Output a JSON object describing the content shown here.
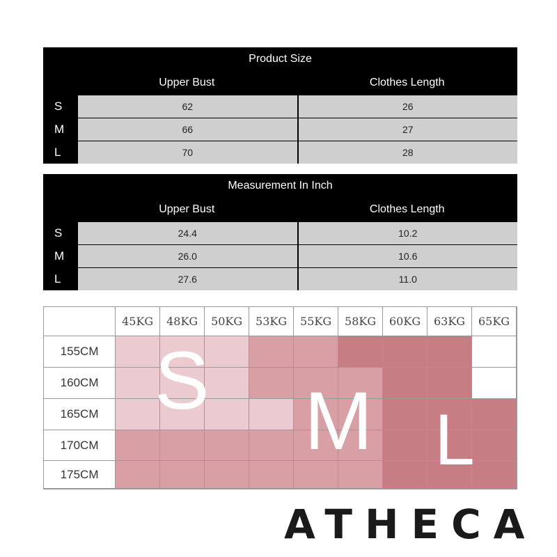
{
  "table_cm": {
    "title": "Product Size",
    "headers": [
      "Upper Bust",
      "Clothes Length"
    ],
    "rows": [
      {
        "size": "S",
        "values": [
          "62",
          "26"
        ]
      },
      {
        "size": "M",
        "values": [
          "66",
          "27"
        ]
      },
      {
        "size": "L",
        "values": [
          "70",
          "28"
        ]
      }
    ]
  },
  "table_inch": {
    "title": "Measurement In Inch",
    "headers": [
      "Upper Bust",
      "Clothes Length"
    ],
    "rows": [
      {
        "size": "S",
        "values": [
          "24.4",
          "10.2"
        ]
      },
      {
        "size": "M",
        "values": [
          "26.0",
          "10.6"
        ]
      },
      {
        "size": "L",
        "values": [
          "27.6",
          "11.0"
        ]
      }
    ]
  },
  "fit_grid": {
    "weights": [
      "45KG",
      "48KG",
      "50KG",
      "53KG",
      "55KG",
      "58KG",
      "60KG",
      "63KG",
      "65KG"
    ],
    "heights": [
      "155CM",
      "160CM",
      "165CM",
      "170CM",
      "175CM"
    ],
    "zone_letters": {
      "s": "S",
      "m": "M",
      "l": "L"
    },
    "colors": {
      "s": "#eccbd0",
      "m": "#d8a0a5",
      "l": "#c77d84",
      "blank": "#ffffff"
    }
  },
  "brand": {
    "name": "ATHECA"
  }
}
